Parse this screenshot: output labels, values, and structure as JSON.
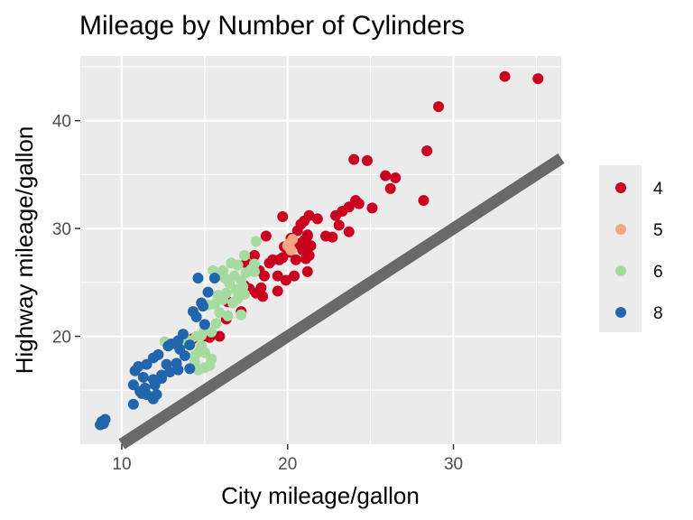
{
  "chart_data": {
    "type": "scatter",
    "title": "Mileage by Number of Cylinders",
    "xlabel": "City mileage/gallon",
    "ylabel": "Highway mileage/gallon",
    "xlim": [
      7.5,
      36.5
    ],
    "ylim": [
      10.0,
      46.0
    ],
    "x_ticks": [
      10,
      20,
      30
    ],
    "y_ticks": [
      20,
      30,
      40
    ],
    "grid": true,
    "legend_position": "right",
    "reference_line": {
      "intercept": 0,
      "slope": 1,
      "color": "#696969"
    },
    "series": [
      {
        "name": "4",
        "color": "#ca0020",
        "points": [
          [
            33.1,
            44.1
          ],
          [
            35.1,
            43.9
          ],
          [
            29.1,
            41.3
          ],
          [
            28.4,
            37.2
          ],
          [
            24.0,
            36.4
          ],
          [
            24.8,
            36.3
          ],
          [
            25.9,
            34.9
          ],
          [
            26.5,
            34.7
          ],
          [
            26.2,
            33.7
          ],
          [
            28.2,
            32.6
          ],
          [
            24.1,
            32.6
          ],
          [
            23.7,
            32.0
          ],
          [
            24.3,
            32.3
          ],
          [
            25.1,
            31.9
          ],
          [
            23.3,
            31.6
          ],
          [
            22.9,
            31.2
          ],
          [
            21.3,
            31.2
          ],
          [
            21.0,
            30.7
          ],
          [
            19.7,
            31.1
          ],
          [
            20.8,
            30.4
          ],
          [
            21.8,
            30.9
          ],
          [
            23.1,
            30.3
          ],
          [
            23.7,
            29.7
          ],
          [
            20.6,
            29.8
          ],
          [
            21.2,
            29.4
          ],
          [
            20.2,
            29.1
          ],
          [
            22.3,
            29.3
          ],
          [
            21.0,
            28.9
          ],
          [
            20.7,
            28.6
          ],
          [
            21.4,
            28.4
          ],
          [
            20.9,
            28.0
          ],
          [
            18.7,
            29.3
          ],
          [
            19.8,
            28.3
          ],
          [
            20.1,
            27.8
          ],
          [
            21.3,
            27.5
          ],
          [
            22.7,
            29.2
          ],
          [
            21.2,
            29.3
          ],
          [
            20.5,
            28.6
          ],
          [
            19.1,
            27.1
          ],
          [
            18.0,
            27.5
          ],
          [
            17.5,
            26.8
          ],
          [
            18.9,
            26.8
          ],
          [
            19.5,
            27.1
          ],
          [
            19.7,
            27.3
          ],
          [
            20.5,
            27.1
          ],
          [
            21.1,
            27.2
          ],
          [
            18.3,
            26.1
          ],
          [
            18.6,
            25.6
          ],
          [
            19.4,
            25.6
          ],
          [
            20.4,
            25.6
          ],
          [
            21.2,
            26.0
          ],
          [
            19.9,
            25.2
          ],
          [
            18.4,
            24.5
          ],
          [
            17.4,
            24.7
          ],
          [
            19.4,
            24.2
          ],
          [
            18.1,
            24.0
          ],
          [
            18.5,
            23.7
          ],
          [
            17.7,
            24.4
          ],
          [
            16.4,
            23.2
          ],
          [
            17.2,
            22.3
          ],
          [
            16.3,
            21.6
          ],
          [
            15.9,
            20.0
          ],
          [
            15.3,
            19.9
          ],
          [
            15.1,
            20.0
          ],
          [
            14.3,
            19.8
          ]
        ]
      },
      {
        "name": "5",
        "color": "#f4a582",
        "points": [
          [
            20.1,
            28.6
          ],
          [
            20.2,
            28.0
          ],
          [
            20.0,
            28.4
          ],
          [
            20.3,
            29.0
          ]
        ]
      },
      {
        "name": "6",
        "color": "#a6dba0",
        "points": [
          [
            18.1,
            28.8
          ],
          [
            17.4,
            27.5
          ],
          [
            18.0,
            26.7
          ],
          [
            17.0,
            26.6
          ],
          [
            16.6,
            26.8
          ],
          [
            16.1,
            26.1
          ],
          [
            15.5,
            26.1
          ],
          [
            16.0,
            25.9
          ],
          [
            17.5,
            25.9
          ],
          [
            17.8,
            26.2
          ],
          [
            18.0,
            26.0
          ],
          [
            16.8,
            25.6
          ],
          [
            16.2,
            25.4
          ],
          [
            17.2,
            25.2
          ],
          [
            16.5,
            24.9
          ],
          [
            17.3,
            24.6
          ],
          [
            16.9,
            24.3
          ],
          [
            16.3,
            24.0
          ],
          [
            15.8,
            23.8
          ],
          [
            17.4,
            23.9
          ],
          [
            17.0,
            23.5
          ],
          [
            16.7,
            23.1
          ],
          [
            16.1,
            23.4
          ],
          [
            15.6,
            23.0
          ],
          [
            15.2,
            22.9
          ],
          [
            15.9,
            22.2
          ],
          [
            16.4,
            21.9
          ],
          [
            17.2,
            22.0
          ],
          [
            15.7,
            21.2
          ],
          [
            15.0,
            20.6
          ],
          [
            14.8,
            20.1
          ],
          [
            14.5,
            20.0
          ],
          [
            15.4,
            20.4
          ],
          [
            14.1,
            19.6
          ],
          [
            14.8,
            19.1
          ],
          [
            14.7,
            18.6
          ],
          [
            15.0,
            18.5
          ],
          [
            14.4,
            18.2
          ],
          [
            15.4,
            17.9
          ],
          [
            14.4,
            17.6
          ],
          [
            15.3,
            17.3
          ],
          [
            15.0,
            17.1
          ],
          [
            14.6,
            16.9
          ],
          [
            13.6,
            19.2
          ],
          [
            12.6,
            19.5
          ]
        ]
      },
      {
        "name": "8",
        "color": "#2166ac",
        "points": [
          [
            15.6,
            25.4
          ],
          [
            14.6,
            25.4
          ],
          [
            15.2,
            24.1
          ],
          [
            14.8,
            23.1
          ],
          [
            14.9,
            22.8
          ],
          [
            14.3,
            22.3
          ],
          [
            15.0,
            21.1
          ],
          [
            14.5,
            21.8
          ],
          [
            13.7,
            20.2
          ],
          [
            14.1,
            19.2
          ],
          [
            13.4,
            19.6
          ],
          [
            13.0,
            19.3
          ],
          [
            12.8,
            19.1
          ],
          [
            13.5,
            18.8
          ],
          [
            13.8,
            18.2
          ],
          [
            12.2,
            18.3
          ],
          [
            11.9,
            18.0
          ],
          [
            11.5,
            17.4
          ],
          [
            12.7,
            17.4
          ],
          [
            13.3,
            17.5
          ],
          [
            11.0,
            17.2
          ],
          [
            10.8,
            16.8
          ],
          [
            11.3,
            16.2
          ],
          [
            12.4,
            16.1
          ],
          [
            11.9,
            16.0
          ],
          [
            12.9,
            16.7
          ],
          [
            12.0,
            15.5
          ],
          [
            10.7,
            15.5
          ],
          [
            11.4,
            15.2
          ],
          [
            11.1,
            14.9
          ],
          [
            11.5,
            14.6
          ],
          [
            11.2,
            14.7
          ],
          [
            12.1,
            14.6
          ],
          [
            11.9,
            14.2
          ],
          [
            10.7,
            13.7
          ],
          [
            14.1,
            17.0
          ],
          [
            13.4,
            16.9
          ],
          [
            12.4,
            16.4
          ],
          [
            8.8,
            12.1
          ],
          [
            9.0,
            12.3
          ],
          [
            8.7,
            11.8
          ],
          [
            8.9,
            11.9
          ]
        ]
      }
    ]
  }
}
